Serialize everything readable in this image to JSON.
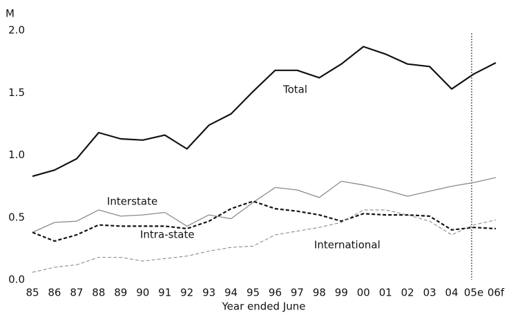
{
  "chart_data": {
    "type": "line",
    "y_unit": "M",
    "x_label": "Year ended June",
    "categories": [
      "85",
      "86",
      "87",
      "88",
      "89",
      "90",
      "91",
      "92",
      "93",
      "94",
      "95",
      "96",
      "97",
      "98",
      "99",
      "00",
      "01",
      "02",
      "03",
      "04",
      "05e",
      "06f"
    ],
    "ylim": [
      0,
      2
    ],
    "yticks": [
      {
        "value": 0,
        "label": "0.0"
      },
      {
        "value": 0.5,
        "label": "0.5"
      },
      {
        "value": 1,
        "label": "1.0"
      },
      {
        "value": 1.5,
        "label": "1.5"
      },
      {
        "value": 2,
        "label": "2.0"
      }
    ],
    "series": [
      {
        "name": "Total",
        "color": "#111111",
        "width": 2.2,
        "dashed": false,
        "values": [
          0.83,
          0.88,
          0.97,
          1.18,
          1.13,
          1.12,
          1.16,
          1.05,
          1.24,
          1.33,
          1.51,
          1.68,
          1.68,
          1.62,
          1.73,
          1.87,
          1.81,
          1.73,
          1.71,
          1.53,
          1.65,
          1.74
        ]
      },
      {
        "name": "Interstate",
        "color": "#8a8a8a",
        "width": 1.3,
        "dashed": false,
        "values": [
          0.38,
          0.46,
          0.47,
          0.56,
          0.51,
          0.52,
          0.54,
          0.43,
          0.52,
          0.49,
          0.62,
          0.74,
          0.72,
          0.66,
          0.79,
          0.76,
          0.72,
          0.67,
          0.71,
          0.75,
          0.78,
          0.82
        ]
      },
      {
        "name": "Intra-state",
        "color": "#111111",
        "width": 2.2,
        "dashed": true,
        "values": [
          0.38,
          0.31,
          0.36,
          0.44,
          0.43,
          0.43,
          0.43,
          0.41,
          0.47,
          0.57,
          0.63,
          0.57,
          0.55,
          0.52,
          0.47,
          0.53,
          0.52,
          0.52,
          0.51,
          0.4,
          0.42,
          0.41
        ]
      },
      {
        "name": "International",
        "color": "#8a8a8a",
        "width": 1.1,
        "dashed": true,
        "values": [
          0.06,
          0.1,
          0.12,
          0.18,
          0.18,
          0.15,
          0.17,
          0.19,
          0.23,
          0.26,
          0.27,
          0.36,
          0.39,
          0.42,
          0.46,
          0.56,
          0.56,
          0.52,
          0.47,
          0.36,
          0.44,
          0.48
        ]
      }
    ]
  }
}
